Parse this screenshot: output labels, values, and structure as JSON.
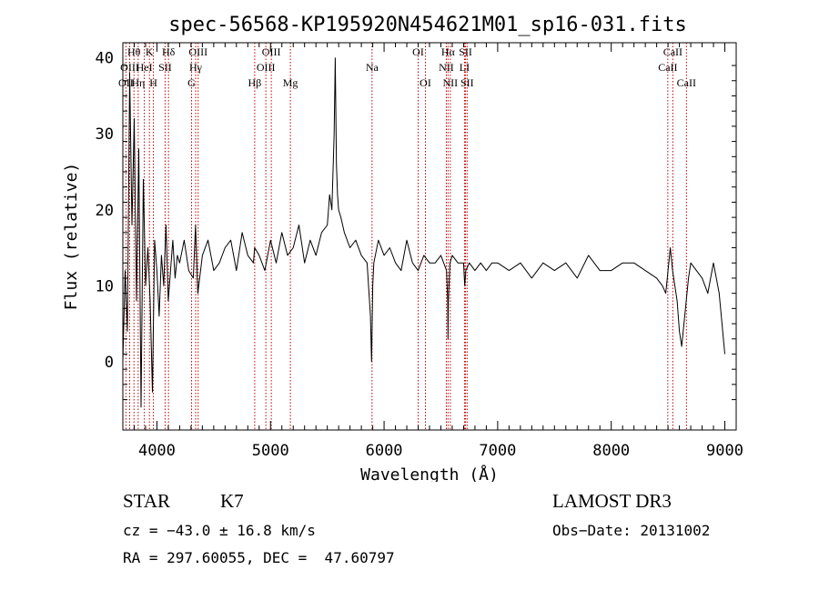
{
  "chart_data": {
    "type": "line",
    "title": "spec-56568-KP195920N454621M01_sp16-031.fits",
    "xlabel": "Wavelength (Å)",
    "ylabel": "Flux (relative)",
    "xlim": [
      3700,
      9100
    ],
    "ylim": [
      -9,
      42
    ],
    "xticks": [
      4000,
      5000,
      6000,
      7000,
      8000,
      9000
    ],
    "yticks": [
      0,
      10,
      20,
      30,
      40
    ],
    "series": [
      {
        "name": "flux",
        "x": [
          3700,
          3720,
          3740,
          3760,
          3780,
          3800,
          3820,
          3840,
          3860,
          3880,
          3900,
          3920,
          3940,
          3960,
          3980,
          4000,
          4020,
          4040,
          4060,
          4080,
          4100,
          4120,
          4140,
          4160,
          4180,
          4200,
          4240,
          4280,
          4320,
          4340,
          4360,
          4400,
          4450,
          4500,
          4550,
          4600,
          4650,
          4700,
          4750,
          4800,
          4850,
          4860,
          4900,
          4950,
          5000,
          5050,
          5100,
          5150,
          5200,
          5250,
          5300,
          5350,
          5400,
          5450,
          5500,
          5520,
          5540,
          5560,
          5570,
          5580,
          5590,
          5600,
          5620,
          5650,
          5700,
          5750,
          5800,
          5850,
          5880,
          5890,
          5895,
          5900,
          5910,
          5950,
          6000,
          6050,
          6100,
          6150,
          6200,
          6250,
          6300,
          6350,
          6400,
          6450,
          6500,
          6550,
          6560,
          6563,
          6566,
          6580,
          6600,
          6650,
          6700,
          6710,
          6720,
          6750,
          6800,
          6850,
          6900,
          6950,
          7000,
          7100,
          7200,
          7300,
          7400,
          7500,
          7600,
          7700,
          7800,
          7900,
          8000,
          8100,
          8200,
          8300,
          8400,
          8450,
          8480,
          8500,
          8520,
          8540,
          8560,
          8580,
          8600,
          8620,
          8640,
          8660,
          8680,
          8700,
          8750,
          8800,
          8850,
          8900,
          8950,
          9000
        ],
        "values": [
          0,
          12,
          4,
          38,
          18,
          32,
          8,
          28,
          -6,
          24,
          10,
          15,
          8,
          -4,
          16,
          12,
          6,
          14,
          10,
          18,
          8,
          12,
          16,
          11,
          14,
          13,
          16,
          12,
          11,
          18,
          9,
          14,
          16,
          12,
          13,
          15,
          16,
          12,
          17,
          14,
          13,
          15,
          14,
          12,
          16,
          13,
          17,
          14,
          15,
          18,
          13,
          16,
          14,
          17,
          18,
          22,
          20,
          30,
          40,
          26,
          22,
          20,
          19,
          17,
          15,
          16,
          14,
          13,
          6,
          0,
          5,
          10,
          13,
          16,
          14,
          15,
          13,
          12,
          16,
          13,
          12,
          14,
          13,
          13,
          14,
          12,
          8,
          3,
          8,
          13,
          14,
          13,
          13,
          10,
          12,
          13,
          12,
          13,
          12,
          13,
          13,
          12,
          13,
          11,
          13,
          12,
          13,
          11,
          14,
          12,
          12,
          13,
          13,
          12,
          11,
          10,
          9,
          12,
          15,
          12,
          10,
          8,
          4,
          2,
          5,
          8,
          11,
          13,
          12,
          11,
          9,
          13,
          9,
          1
        ]
      }
    ],
    "lines": [
      {
        "label": "OII",
        "x": 3727,
        "row": 3
      },
      {
        "label": "Hθ",
        "x": 3798,
        "row": 1
      },
      {
        "label": "OIII",
        "x": 3760,
        "row": 2
      },
      {
        "label": "Hη",
        "x": 3835,
        "row": 3
      },
      {
        "label": "HeI",
        "x": 3889,
        "row": 2
      },
      {
        "label": "K",
        "x": 3934,
        "row": 1
      },
      {
        "label": "H",
        "x": 3969,
        "row": 3
      },
      {
        "label": "SII",
        "x": 4072,
        "row": 2
      },
      {
        "label": "Hδ",
        "x": 4102,
        "row": 1
      },
      {
        "label": "G",
        "x": 4305,
        "row": 3
      },
      {
        "label": "Hγ",
        "x": 4341,
        "row": 2
      },
      {
        "label": "OIII",
        "x": 4363,
        "row": 1
      },
      {
        "label": "Hβ",
        "x": 4861,
        "row": 3
      },
      {
        "label": "OIII",
        "x": 4959,
        "row": 2
      },
      {
        "label": "OIII",
        "x": 5007,
        "row": 1
      },
      {
        "label": "Mg",
        "x": 5175,
        "row": 3
      },
      {
        "label": "Na",
        "x": 5894,
        "row": 2
      },
      {
        "label": "OI",
        "x": 6300,
        "row": 1
      },
      {
        "label": "OI",
        "x": 6364,
        "row": 3
      },
      {
        "label": "NII",
        "x": 6548,
        "row": 2
      },
      {
        "label": "Hα",
        "x": 6563,
        "row": 1
      },
      {
        "label": "NII",
        "x": 6583,
        "row": 3
      },
      {
        "label": "LI",
        "x": 6708,
        "row": 2
      },
      {
        "label": "SII",
        "x": 6717,
        "row": 1
      },
      {
        "label": "SII",
        "x": 6731,
        "row": 3
      },
      {
        "label": "CaII",
        "x": 8498,
        "row": 2
      },
      {
        "label": "CaII",
        "x": 8542,
        "row": 1
      },
      {
        "label": "CaII",
        "x": 8662,
        "row": 3
      }
    ]
  },
  "info": {
    "class": "STAR",
    "subclass": "K7",
    "survey": "LAMOST DR3",
    "cz": "cz = −43.0 ± 16.8 km/s",
    "obs_date": "Obs−Date: 20131002",
    "coords": "RA = 297.60055, DEC =  47.60797"
  }
}
